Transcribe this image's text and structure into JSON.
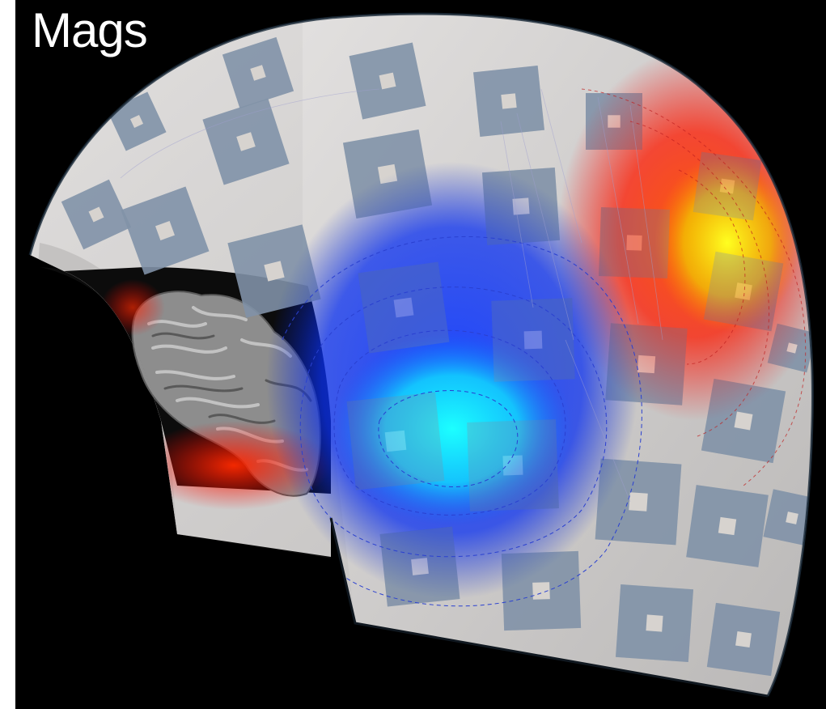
{
  "figure": {
    "label": "Mags"
  },
  "colors": {
    "background": "#000000",
    "helmet": "#c9c7c6",
    "sensor": "#8193a8",
    "sensor_center": "#d7d3cf",
    "brain": "#9a9a9a",
    "field_positive": "#ff2a00",
    "field_peak": "#f2ef00",
    "field_negative": "#0a3cff",
    "field_minimum": "#18f0ff",
    "contours": "#2a40d0"
  },
  "icons": [
    "brain-surface-icon"
  ]
}
